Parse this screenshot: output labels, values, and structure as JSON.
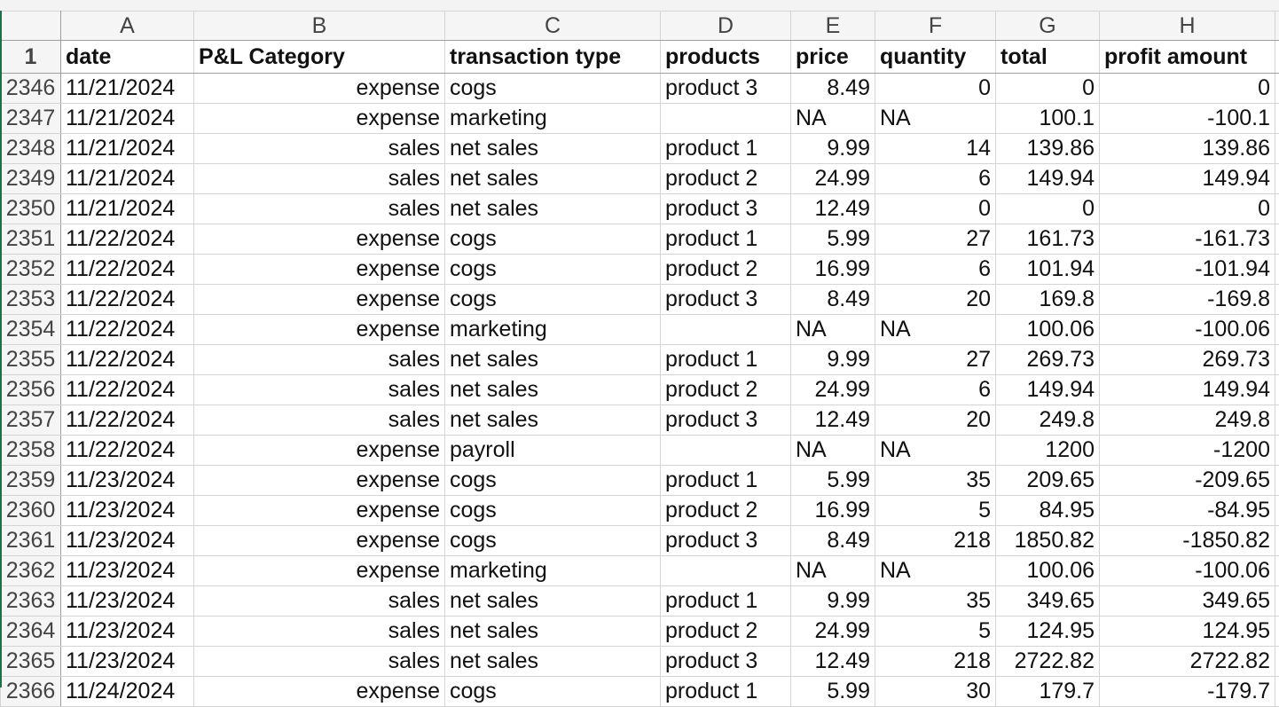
{
  "sheet": {
    "columns": [
      "A",
      "B",
      "C",
      "D",
      "E",
      "F",
      "G",
      "H"
    ],
    "header": {
      "row": 1,
      "cells": [
        "date",
        "P&L Category",
        "transaction type",
        "products",
        "price",
        "quantity",
        "total",
        "profit amount"
      ]
    },
    "rows": [
      {
        "row": 2346,
        "cells": [
          "11/21/2024",
          "expense",
          "cogs",
          "product 3",
          8.49,
          0,
          0,
          0
        ]
      },
      {
        "row": 2347,
        "cells": [
          "11/21/2024",
          "expense",
          "marketing",
          null,
          "NA",
          "NA",
          100.1,
          -100.1
        ]
      },
      {
        "row": 2348,
        "cells": [
          "11/21/2024",
          "sales",
          "net sales",
          "product 1",
          9.99,
          14,
          139.86,
          139.86
        ]
      },
      {
        "row": 2349,
        "cells": [
          "11/21/2024",
          "sales",
          "net sales",
          "product 2",
          24.99,
          6,
          149.94,
          149.94
        ]
      },
      {
        "row": 2350,
        "cells": [
          "11/21/2024",
          "sales",
          "net sales",
          "product 3",
          12.49,
          0,
          0,
          0
        ]
      },
      {
        "row": 2351,
        "cells": [
          "11/22/2024",
          "expense",
          "cogs",
          "product 1",
          5.99,
          27,
          161.73,
          -161.73
        ]
      },
      {
        "row": 2352,
        "cells": [
          "11/22/2024",
          "expense",
          "cogs",
          "product 2",
          16.99,
          6,
          101.94,
          -101.94
        ]
      },
      {
        "row": 2353,
        "cells": [
          "11/22/2024",
          "expense",
          "cogs",
          "product 3",
          8.49,
          20,
          169.8,
          -169.8
        ]
      },
      {
        "row": 2354,
        "cells": [
          "11/22/2024",
          "expense",
          "marketing",
          null,
          "NA",
          "NA",
          100.06,
          -100.06
        ]
      },
      {
        "row": 2355,
        "cells": [
          "11/22/2024",
          "sales",
          "net sales",
          "product 1",
          9.99,
          27,
          269.73,
          269.73
        ]
      },
      {
        "row": 2356,
        "cells": [
          "11/22/2024",
          "sales",
          "net sales",
          "product 2",
          24.99,
          6,
          149.94,
          149.94
        ]
      },
      {
        "row": 2357,
        "cells": [
          "11/22/2024",
          "sales",
          "net sales",
          "product 3",
          12.49,
          20,
          249.8,
          249.8
        ]
      },
      {
        "row": 2358,
        "cells": [
          "11/22/2024",
          "expense",
          "payroll",
          null,
          "NA",
          "NA",
          1200,
          -1200
        ]
      },
      {
        "row": 2359,
        "cells": [
          "11/23/2024",
          "expense",
          "cogs",
          "product 1",
          5.99,
          35,
          209.65,
          -209.65
        ]
      },
      {
        "row": 2360,
        "cells": [
          "11/23/2024",
          "expense",
          "cogs",
          "product 2",
          16.99,
          5,
          84.95,
          -84.95
        ]
      },
      {
        "row": 2361,
        "cells": [
          "11/23/2024",
          "expense",
          "cogs",
          "product 3",
          8.49,
          218,
          1850.82,
          -1850.82
        ]
      },
      {
        "row": 2362,
        "cells": [
          "11/23/2024",
          "expense",
          "marketing",
          null,
          "NA",
          "NA",
          100.06,
          -100.06
        ]
      },
      {
        "row": 2363,
        "cells": [
          "11/23/2024",
          "sales",
          "net sales",
          "product 1",
          9.99,
          35,
          349.65,
          349.65
        ]
      },
      {
        "row": 2364,
        "cells": [
          "11/23/2024",
          "sales",
          "net sales",
          "product 2",
          24.99,
          5,
          124.95,
          124.95
        ]
      },
      {
        "row": 2365,
        "cells": [
          "11/23/2024",
          "sales",
          "net sales",
          "product 3",
          12.49,
          218,
          2722.82,
          2722.82
        ]
      },
      {
        "row": 2366,
        "cells": [
          "11/24/2024",
          "expense",
          "cogs",
          "product 1",
          5.99,
          30,
          179.7,
          -179.7
        ]
      }
    ]
  }
}
